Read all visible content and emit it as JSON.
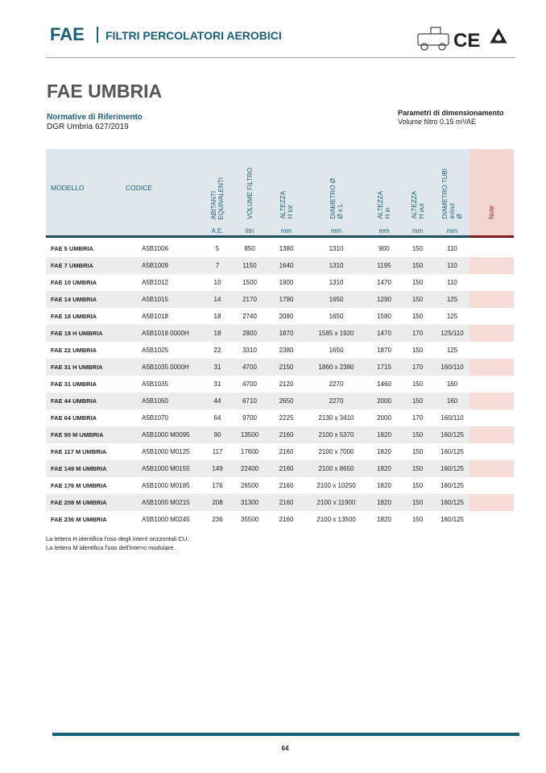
{
  "header": {
    "brand": "FAE",
    "subtitle": "FILTRI PERCOLATORI AEROBICI",
    "ce_mark": "CE"
  },
  "title": "FAE UMBRIA",
  "normative": {
    "label": "Normative di Riferimento",
    "text": "DGR Umbria 627/2019"
  },
  "parameters": {
    "label": "Parametri di dimensionamento",
    "text": "Volume filtro 0.15 m³/AE"
  },
  "table": {
    "columns": [
      {
        "label": [
          "MODELLO"
        ]
      },
      {
        "label": [
          "CODICE"
        ]
      },
      {
        "label": [
          "ABITANTI",
          "EQUIVALENTI"
        ],
        "unit": "A.E."
      },
      {
        "label": [
          "VOLUME FILTRO"
        ],
        "unit": "litri"
      },
      {
        "label": [
          "ALTEZZA",
          "H tot"
        ],
        "unit": "mm"
      },
      {
        "label": [
          "DIAMETRO Ø",
          "Ø x L"
        ],
        "unit": "mm"
      },
      {
        "label": [
          "ALTEZZA",
          "H in"
        ],
        "unit": "mm"
      },
      {
        "label": [
          "ALTEZZA",
          "H out"
        ],
        "unit": "mm"
      },
      {
        "label": [
          "DIAMETRO TUBI",
          "in/out",
          "Ø"
        ],
        "unit": "mm"
      },
      {
        "label": [
          "Note"
        ]
      }
    ],
    "rows": [
      [
        "FAE 5  UMBRIA",
        "A5B1006",
        "5",
        "850",
        "1380",
        "1310",
        "900",
        "150",
        "110"
      ],
      [
        "FAE 7 UMBRIA",
        "A5B1009",
        "7",
        "1150",
        "1640",
        "1310",
        "1195",
        "150",
        "110"
      ],
      [
        "FAE 10 UMBRIA",
        "A5B1012",
        "10",
        "1500",
        "1900",
        "1310",
        "1470",
        "150",
        "110"
      ],
      [
        "FAE 14 UMBRIA",
        "A5B1015",
        "14",
        "2170",
        "1790",
        "1650",
        "1290",
        "150",
        "125"
      ],
      [
        "FAE 18 UMBRIA",
        "A5B1018",
        "18",
        "2740",
        "2080",
        "1650",
        "1580",
        "150",
        "125"
      ],
      [
        "FAE 18 H UMBRIA",
        "A5B1018 0000H",
        "18",
        "2800",
        "1870",
        "1585 x 1920",
        "1470",
        "170",
        "125/110"
      ],
      [
        "FAE 22 UMBRIA",
        "A5B1025",
        "22",
        "3310",
        "2380",
        "1650",
        "1870",
        "150",
        "125"
      ],
      [
        "FAE 31 H UMBRIA",
        "A5B1035 0000H",
        "31",
        "4700",
        "2150",
        "1860 x 2380",
        "1715",
        "170",
        "160/110"
      ],
      [
        "FAE 31 UMBRIA",
        "A5B1035",
        "31",
        "4700",
        "2120",
        "2270",
        "1460",
        "150",
        "160"
      ],
      [
        "FAE 44 UMBRIA",
        "A5B1050",
        "44",
        "6710",
        "2650",
        "2270",
        "2000",
        "150",
        "160"
      ],
      [
        "FAE 64 UMBRIA",
        "A5B1070",
        "64",
        "9700",
        "2225",
        "2130 x 3410",
        "2000",
        "170",
        "160/110"
      ],
      [
        "FAE 90 M UMBRIA",
        "A5B1000 M0095",
        "90",
        "13500",
        "2160",
        "2100  x 5370",
        "1820",
        "150",
        "160/125"
      ],
      [
        "FAE 117 M UMBRIA",
        "A5B1000 M0125",
        "117",
        "17600",
        "2160",
        "2100 x 7000",
        "1820",
        "150",
        "160/125"
      ],
      [
        "FAE 149 M UMBRIA",
        "A5B1000 M0155",
        "149",
        "22400",
        "2160",
        "2100 x 8650",
        "1820",
        "150",
        "160/125"
      ],
      [
        "FAE 176 M UMBRIA",
        "A5B1000 M0185",
        "176",
        "26500",
        "2160",
        "2100 x 10250",
        "1820",
        "150",
        "160/125"
      ],
      [
        "FAE 208 M UMBRIA",
        "A5B1000 M0215",
        "208",
        "31300",
        "2160",
        "2100 x 11900",
        "1820",
        "150",
        "160/125"
      ],
      [
        "FAE 236 M UMBRIA",
        "A5B1000 M0245",
        "236",
        "35500",
        "2160",
        "2100 x 13500",
        "1820",
        "150",
        "160/125"
      ]
    ]
  },
  "footnotes": [
    "La lettera H identifica l'uso degli interri orizzontali CU.",
    "La lettera M identifica l'uso dell'interro modulare."
  ],
  "page_number": "64"
}
